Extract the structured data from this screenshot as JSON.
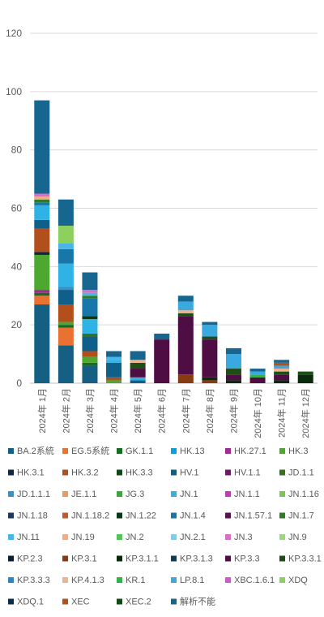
{
  "chart_data": {
    "type": "bar",
    "stacked": true,
    "ylim": [
      0,
      120
    ],
    "yticks": [
      0,
      20,
      40,
      60,
      80,
      100,
      120
    ],
    "grid": true,
    "legend_position": "bottom",
    "categories": [
      "2024年 1月",
      "2024年 2月",
      "2024年 3月",
      "2024年 4月",
      "2024年 5月",
      "2024年 6月",
      "2024年 7月",
      "2024年 8月",
      "2024年 9月",
      "2024年 10月",
      "2024年 11月",
      "2024年 12月"
    ],
    "series": [
      {
        "name": "BA.2系統",
        "color": "#156082",
        "values": [
          27,
          13,
          6,
          0,
          0,
          0,
          0,
          0,
          0,
          0,
          0,
          0
        ]
      },
      {
        "name": "EG.5系統",
        "color": "#E97132",
        "values": [
          3,
          6,
          0,
          0,
          0,
          0,
          0,
          0,
          0,
          0,
          0,
          0
        ]
      },
      {
        "name": "GK.1.1",
        "color": "#196B24",
        "values": [
          1,
          1,
          1,
          0,
          0,
          0,
          0,
          0,
          0,
          0,
          0,
          0
        ]
      },
      {
        "name": "HK.13",
        "color": "#0F9ED5",
        "values": [
          0,
          0,
          0,
          0,
          0,
          0,
          0,
          0,
          0,
          0,
          0,
          0
        ]
      },
      {
        "name": "HK.27.1",
        "color": "#A02B93",
        "values": [
          1,
          0,
          0,
          0,
          0,
          0,
          0,
          0,
          0,
          0,
          0,
          0
        ]
      },
      {
        "name": "HK.3",
        "color": "#4EA72E",
        "values": [
          12,
          1,
          2,
          1,
          0,
          0,
          0,
          0,
          0,
          0,
          0,
          0
        ]
      },
      {
        "name": "HK.3.1",
        "color": "#0E2841",
        "values": [
          1,
          0,
          0,
          0,
          0,
          0,
          0,
          0,
          0,
          0,
          0,
          0
        ]
      },
      {
        "name": "HK.3.2",
        "color": "#B24F1D",
        "values": [
          8,
          6,
          2,
          1,
          0,
          0,
          0,
          0,
          0,
          0,
          0,
          0
        ]
      },
      {
        "name": "HK.3.3",
        "color": "#114718",
        "values": [
          0,
          0,
          0,
          0,
          0,
          0,
          0,
          0,
          0,
          0,
          0,
          0
        ]
      },
      {
        "name": "HV.1",
        "color": "#0F5F8B",
        "values": [
          3,
          5,
          5,
          5,
          1,
          0,
          0,
          0,
          0,
          0,
          0,
          0
        ]
      },
      {
        "name": "HV.1.1",
        "color": "#6B1A5E",
        "values": [
          0,
          0,
          0,
          0,
          0,
          0,
          0,
          0,
          0,
          0,
          0,
          0
        ]
      },
      {
        "name": "JD.1.1",
        "color": "#37701F",
        "values": [
          0,
          0,
          1,
          0,
          0,
          0,
          0,
          0,
          0,
          0,
          0,
          0
        ]
      },
      {
        "name": "JD.1.1.1",
        "color": "#3F8DC1",
        "values": [
          0,
          1,
          0,
          0,
          0,
          0,
          0,
          0,
          0,
          0,
          0,
          0
        ]
      },
      {
        "name": "JE.1.1",
        "color": "#F39760",
        "values": [
          0,
          0,
          0,
          0,
          0,
          0,
          0,
          0,
          0,
          0,
          0,
          0
        ]
      },
      {
        "name": "JG.3",
        "color": "#3EA53C",
        "values": [
          0,
          0,
          0,
          0,
          0,
          0,
          0,
          0,
          0,
          0,
          0,
          0
        ]
      },
      {
        "name": "JN.1",
        "color": "#2EB3E4",
        "values": [
          5,
          8,
          5,
          1,
          1,
          0,
          0,
          0,
          0,
          0,
          0,
          0
        ]
      },
      {
        "name": "JN.1.1",
        "color": "#C13CB0",
        "values": [
          0,
          0,
          0,
          0,
          0,
          0,
          0,
          0,
          0,
          0,
          0,
          0
        ]
      },
      {
        "name": "JN.1.16",
        "color": "#78C755",
        "values": [
          0,
          0,
          0,
          0,
          0,
          0,
          0,
          0,
          0,
          0,
          0,
          0
        ]
      },
      {
        "name": "JN.1.18",
        "color": "#1C3A5B",
        "values": [
          0,
          0,
          0,
          0,
          0,
          0,
          0,
          0,
          0,
          0,
          0,
          0
        ]
      },
      {
        "name": "JN.1.18.2",
        "color": "#C45A26",
        "values": [
          0,
          0,
          0,
          0,
          0,
          0,
          0,
          0,
          0,
          0,
          0,
          0
        ]
      },
      {
        "name": "JN.1.22",
        "color": "#0B3812",
        "values": [
          0,
          0,
          1,
          0,
          0,
          0,
          0,
          0,
          0,
          0,
          0,
          0
        ]
      },
      {
        "name": "JN.1.4",
        "color": "#1677A8",
        "values": [
          1,
          5,
          6,
          0,
          0,
          0,
          0,
          0,
          0,
          0,
          0,
          0
        ]
      },
      {
        "name": "JN.1.57.1",
        "color": "#5C124F",
        "values": [
          0,
          0,
          0,
          0,
          0,
          0,
          0,
          0,
          0,
          0,
          0,
          0
        ]
      },
      {
        "name": "JN.1.7",
        "color": "#2E7D24",
        "values": [
          1,
          0,
          1,
          0,
          0,
          0,
          0,
          0,
          0,
          0,
          0,
          0
        ]
      },
      {
        "name": "JN.11",
        "color": "#49B5E8",
        "values": [
          0,
          2,
          1,
          1,
          0,
          0,
          0,
          0,
          0,
          0,
          0,
          0
        ]
      },
      {
        "name": "JN.19",
        "color": "#F4AA88",
        "values": [
          1,
          0,
          0,
          0,
          0,
          0,
          0,
          0,
          0,
          0,
          0,
          0
        ]
      },
      {
        "name": "JN.2",
        "color": "#56C25A",
        "values": [
          0,
          0,
          0,
          0,
          0,
          0,
          0,
          0,
          0,
          0,
          0,
          0
        ]
      },
      {
        "name": "JN.2.1",
        "color": "#7FCDEE",
        "values": [
          0,
          0,
          0,
          0,
          0,
          0,
          0,
          0,
          0,
          0,
          0,
          0
        ]
      },
      {
        "name": "JN.3",
        "color": "#D670C6",
        "values": [
          1,
          0,
          1,
          0,
          0,
          0,
          0,
          0,
          0,
          0,
          0,
          0
        ]
      },
      {
        "name": "JN.9",
        "color": "#9ED67F",
        "values": [
          0,
          0,
          0,
          0,
          0,
          0,
          0,
          0,
          0,
          0,
          0,
          0
        ]
      },
      {
        "name": "KP.2.3",
        "color": "#0B1F33",
        "values": [
          0,
          0,
          0,
          0,
          0,
          0,
          0,
          0,
          0,
          0,
          0,
          0
        ]
      },
      {
        "name": "KP.3.1",
        "color": "#8A3A12",
        "values": [
          0,
          0,
          0,
          0,
          0,
          0,
          3,
          1,
          0,
          0,
          0,
          0
        ]
      },
      {
        "name": "KP.3.1.1",
        "color": "#0A2A0D",
        "values": [
          0,
          0,
          0,
          0,
          0,
          0,
          0,
          1,
          1,
          0,
          1,
          3
        ]
      },
      {
        "name": "KP.3.1.3",
        "color": "#0D3E58",
        "values": [
          0,
          0,
          0,
          0,
          0,
          0,
          0,
          0,
          0,
          0,
          0,
          0
        ]
      },
      {
        "name": "KP.3.3",
        "color": "#4E0E43",
        "values": [
          0,
          0,
          0,
          0,
          3,
          15,
          20,
          13,
          2,
          2,
          2,
          0
        ]
      },
      {
        "name": "KP.3.3.1",
        "color": "#1F4D18",
        "values": [
          0,
          0,
          0,
          0,
          2,
          0,
          1,
          1,
          2,
          0,
          1,
          1
        ]
      },
      {
        "name": "KP.3.3.3",
        "color": "#2F86C0",
        "values": [
          0,
          0,
          0,
          0,
          0,
          0,
          0,
          0,
          0,
          0,
          0,
          0
        ]
      },
      {
        "name": "KP.4.1.3",
        "color": "#F0B38E",
        "values": [
          0,
          0,
          0,
          0,
          1,
          0,
          1,
          0,
          0,
          0,
          1,
          0
        ]
      },
      {
        "name": "KR.1",
        "color": "#33B24A",
        "values": [
          0,
          0,
          0,
          0,
          0,
          0,
          0,
          0,
          0,
          1,
          0,
          0
        ]
      },
      {
        "name": "LP.8.1",
        "color": "#39A9E0",
        "values": [
          0,
          0,
          0,
          0,
          0,
          0,
          3,
          4,
          5,
          1,
          1,
          0
        ]
      },
      {
        "name": "XBC.1.6.1",
        "color": "#C95FBE",
        "values": [
          0,
          0,
          0,
          0,
          0,
          0,
          0,
          0,
          0,
          0,
          0,
          0
        ]
      },
      {
        "name": "XDQ",
        "color": "#8CD05E",
        "values": [
          0,
          6,
          0,
          0,
          0,
          0,
          0,
          0,
          0,
          0,
          0,
          0
        ]
      },
      {
        "name": "XDQ.1",
        "color": "#0D2B4A",
        "values": [
          0,
          0,
          0,
          0,
          0,
          0,
          0,
          0,
          0,
          0,
          0,
          0
        ]
      },
      {
        "name": "XEC",
        "color": "#B2521E",
        "values": [
          0,
          0,
          0,
          0,
          0,
          0,
          0,
          0,
          0,
          0,
          1,
          0
        ]
      },
      {
        "name": "XEC.2",
        "color": "#0F4A17",
        "values": [
          0,
          0,
          0,
          0,
          0,
          0,
          0,
          0,
          0,
          0,
          0,
          0
        ]
      },
      {
        "name": "解析不能",
        "color": "#16668F",
        "values": [
          32,
          9,
          6,
          2,
          3,
          2,
          2,
          1,
          2,
          1,
          1,
          0
        ]
      }
    ]
  }
}
